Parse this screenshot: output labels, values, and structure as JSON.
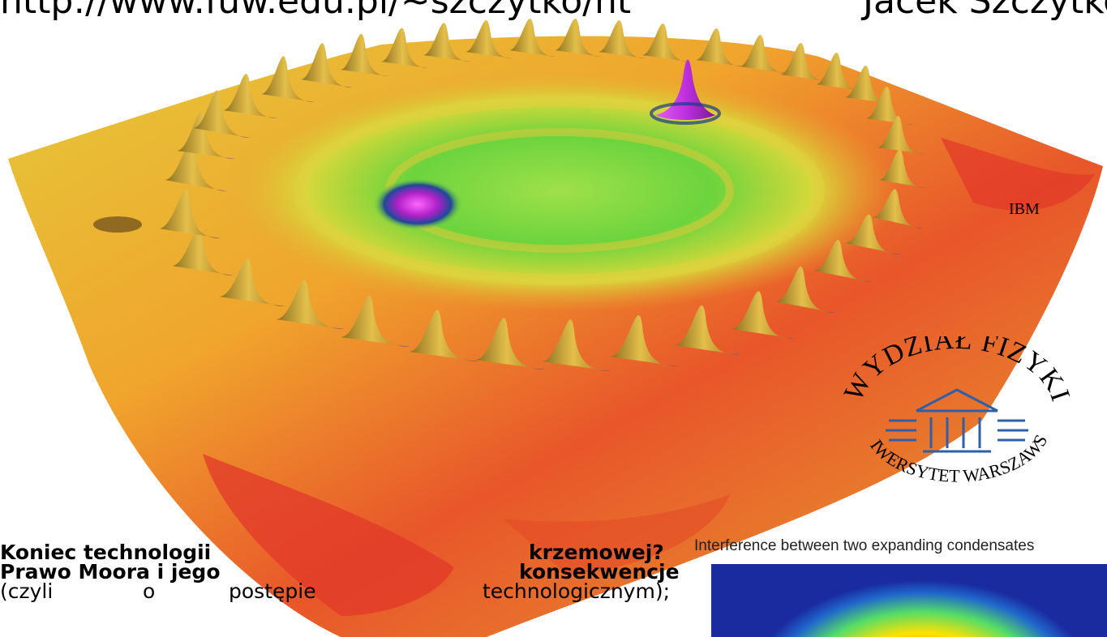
{
  "header": {
    "url_text": "http://www.fuw.edu.pl/~szczytko/nt",
    "author_text": "Jacek Szczytko"
  },
  "figure": {
    "credit": "IBM",
    "caption": "Interference between two expanding condensates"
  },
  "logo": {
    "top_text": "WYDZIAŁ FIZYKI",
    "bottom_text": "UNIWERSYTET WARSZAWSKI"
  },
  "text_block": {
    "line1_left": "Koniec technologii",
    "line1_right": "krzemowej?",
    "line2_left": "Prawo Moora i jego",
    "line2_right": "konsekwencje",
    "line3_words": [
      "(czyli",
      "o",
      "postępie",
      "technologicznym);"
    ]
  },
  "colors": {
    "surface_red": "#e0321e",
    "surface_orange": "#f2a12a",
    "surface_yellow": "#e4d23a",
    "surface_green": "#6ed23c",
    "atom_gold": "#d9a23a",
    "atom_purple": "#c02ad8",
    "logo_blue": "#2f5fa8"
  }
}
